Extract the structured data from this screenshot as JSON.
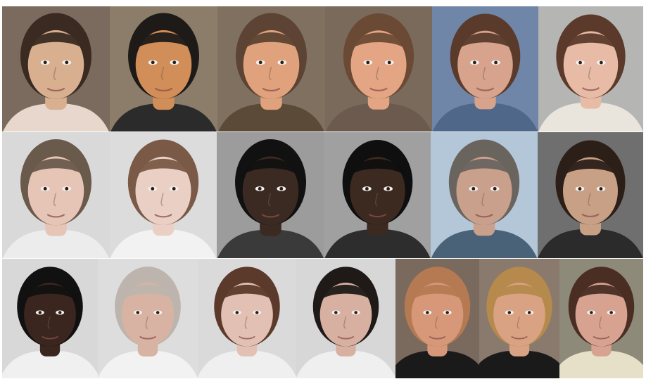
{
  "figure": {
    "alt_text": "",
    "rows": [
      {
        "row": 1,
        "tiles": [
          {
            "icon": "female-portrait-icon",
            "bg": "#7a6b5e",
            "skin": "#d8b090",
            "hair": "#3a2a22",
            "shirt": "#e7d7cc"
          },
          {
            "icon": "male-portrait-icon",
            "bg": "#8b7d6a",
            "skin": "#d18e58",
            "hair": "#1e1a18",
            "shirt": "#2b2b2b"
          },
          {
            "icon": "male-portrait-icon",
            "bg": "#7f705f",
            "skin": "#e0a27d",
            "hair": "#5d4333",
            "shirt": "#5c4a39"
          },
          {
            "icon": "female-portrait-icon",
            "bg": "#7a6a5b",
            "skin": "#e3a583",
            "hair": "#6b4a35",
            "shirt": "#6b5a4d"
          },
          {
            "icon": "male-portrait-icon",
            "bg": "#6f86a8",
            "skin": "#d7a38d",
            "hair": "#5a3b2b",
            "shirt": "#4f6788"
          },
          {
            "icon": "female-portrait-icon",
            "bg": "#b5b6b3",
            "skin": "#e7bba5",
            "hair": "#5b3a2b",
            "shirt": "#eae5dc"
          }
        ]
      },
      {
        "row": 2,
        "tiles": [
          {
            "icon": "male-portrait-icon",
            "bg": "#d9d9d9",
            "skin": "#e6c5b7",
            "hair": "#6a5a4c",
            "shirt": "#ececec"
          },
          {
            "icon": "female-portrait-icon",
            "bg": "#dcdcdc",
            "skin": "#ead0c4",
            "hair": "#7a5a47",
            "shirt": "#f2f2f2"
          },
          {
            "icon": "male-portrait-icon",
            "bg": "#9c9c9c",
            "skin": "#3b2a22",
            "hair": "#111111",
            "shirt": "#3a3a3a"
          },
          {
            "icon": "female-portrait-icon",
            "bg": "#a0a0a0",
            "skin": "#3c2a21",
            "hair": "#0f0f0f",
            "shirt": "#2d2d2d"
          },
          {
            "icon": "male-portrait-icon",
            "bg": "#b4c7d8",
            "skin": "#c9a08c",
            "hair": "#6a645f",
            "shirt": "#4a6277"
          },
          {
            "icon": "male-portrait-icon",
            "bg": "#6f6f6f",
            "skin": "#c8a085",
            "hair": "#2c1f18",
            "shirt": "#2b2b2b"
          }
        ]
      },
      {
        "row": 3,
        "tiles": [
          {
            "icon": "male-portrait-icon",
            "bg": "#d8d8d8",
            "skin": "#3a261f",
            "hair": "#111111",
            "shirt": "#f0f0f0"
          },
          {
            "icon": "male-portrait-icon",
            "bg": "#dddddd",
            "skin": "#d8b3a4",
            "hair": "#bdb5ad",
            "shirt": "#f2f2f2"
          },
          {
            "icon": "female-portrait-icon",
            "bg": "#dadada",
            "skin": "#e2c0b3",
            "hair": "#5b3a2b",
            "shirt": "#efefef"
          },
          {
            "icon": "male-portrait-icon",
            "bg": "#d7d7d7",
            "skin": "#d7b0a1",
            "hair": "#1f1a18",
            "shirt": "#efefef"
          },
          {
            "icon": "female-portrait-icon",
            "bg": "#7a6a5e",
            "skin": "#d69878",
            "hair": "#b57a52",
            "shirt": "#1a1a1a"
          },
          {
            "icon": "female-portrait-icon",
            "bg": "#8a7a6d",
            "skin": "#d9a283",
            "hair": "#b58a4c",
            "shirt": "#1a1a1a"
          },
          {
            "icon": "female-portrait-icon",
            "bg": "#8e8a7a",
            "skin": "#d7a28f",
            "hair": "#4a2e24",
            "shirt": "#e7e0c9"
          }
        ]
      }
    ]
  }
}
